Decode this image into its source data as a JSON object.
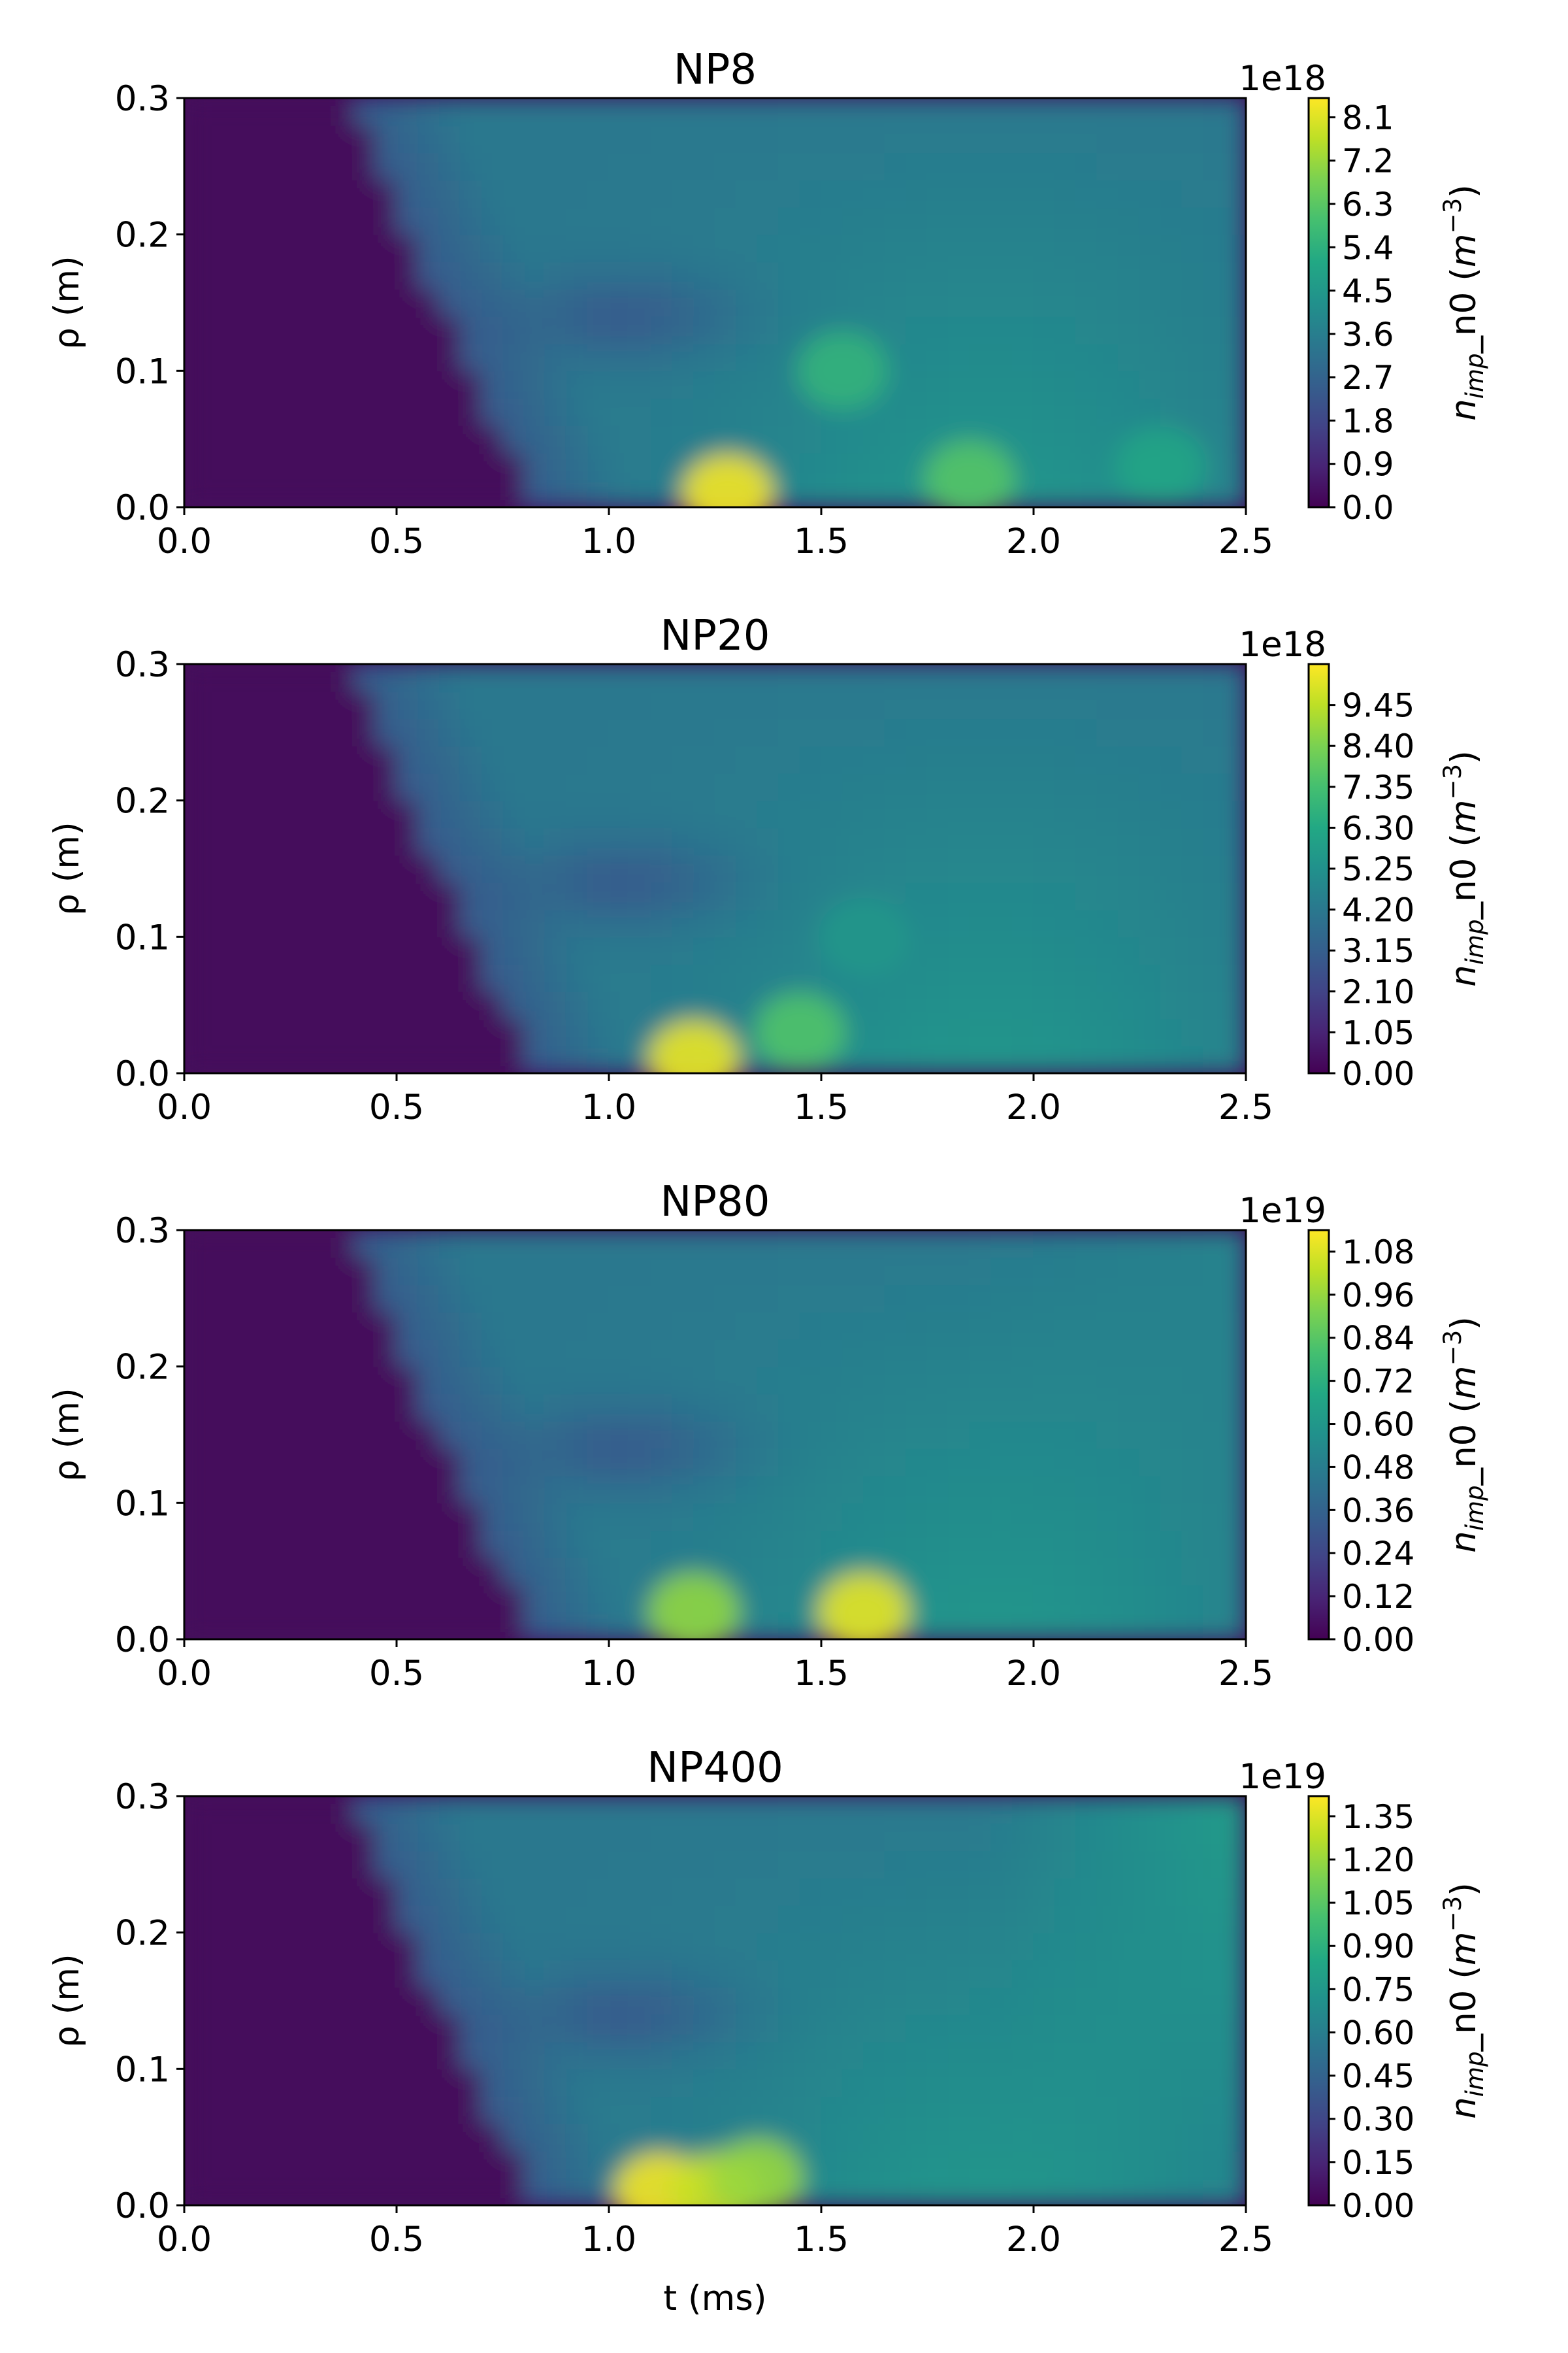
{
  "chart_data": [
    {
      "type": "heatmap",
      "title": "NP8",
      "xlabel": "",
      "ylabel": "ρ (m)",
      "xlim": [
        0.0,
        2.5
      ],
      "ylim": [
        0.0,
        0.3
      ],
      "x_ticks": [
        "0.0",
        "0.5",
        "1.0",
        "1.5",
        "2.0",
        "2.5"
      ],
      "y_ticks": [
        "0.0",
        "0.1",
        "0.2",
        "0.3"
      ],
      "colormap": "viridis",
      "colorbar": {
        "label": "n_imp_n0 (m^-3)",
        "label_main": "n",
        "label_sub": "imp",
        "label_mid": "_n0 (",
        "label_m": "m",
        "label_sup": "−3",
        "label_end": ")",
        "exponent": "1e18",
        "vmin": 0.0,
        "vmax": 8.5,
        "ticks": [
          "0.0",
          "0.9",
          "1.8",
          "2.7",
          "3.6",
          "4.5",
          "5.4",
          "6.3",
          "7.2",
          "8.1"
        ],
        "tick_values": [
          0.0,
          0.9,
          1.8,
          2.7,
          3.6,
          4.5,
          5.4,
          6.3,
          7.2,
          8.1
        ]
      },
      "features": [
        {
          "t": 1.28,
          "rho": 0.01,
          "level": 8.4
        },
        {
          "t": 1.55,
          "rho": 0.1,
          "level": 5.5
        },
        {
          "t": 1.85,
          "rho": 0.02,
          "level": 6.2
        },
        {
          "t": 2.3,
          "rho": 0.03,
          "level": 5.0
        }
      ]
    },
    {
      "type": "heatmap",
      "title": "NP20",
      "xlabel": "",
      "ylabel": "ρ (m)",
      "xlim": [
        0.0,
        2.5
      ],
      "ylim": [
        0.0,
        0.3
      ],
      "x_ticks": [
        "0.0",
        "0.5",
        "1.0",
        "1.5",
        "2.0",
        "2.5"
      ],
      "y_ticks": [
        "0.0",
        "0.1",
        "0.2",
        "0.3"
      ],
      "colormap": "viridis",
      "colorbar": {
        "label": "n_imp_n0 (m^-3)",
        "label_main": "n",
        "label_sub": "imp",
        "label_mid": "_n0 (",
        "label_m": "m",
        "label_sup": "−3",
        "label_end": ")",
        "exponent": "1e18",
        "vmin": 0.0,
        "vmax": 10.5,
        "ticks": [
          "0.00",
          "1.05",
          "2.10",
          "3.15",
          "4.20",
          "5.25",
          "6.30",
          "7.35",
          "8.40",
          "9.45"
        ],
        "tick_values": [
          0.0,
          1.05,
          2.1,
          3.15,
          4.2,
          5.25,
          6.3,
          7.35,
          8.4,
          9.45
        ]
      },
      "features": [
        {
          "t": 1.2,
          "rho": 0.01,
          "level": 10.2
        },
        {
          "t": 1.45,
          "rho": 0.03,
          "level": 7.6
        },
        {
          "t": 1.6,
          "rho": 0.1,
          "level": 5.5
        }
      ]
    },
    {
      "type": "heatmap",
      "title": "NP80",
      "xlabel": "",
      "ylabel": "ρ (m)",
      "xlim": [
        0.0,
        2.5
      ],
      "ylim": [
        0.0,
        0.3
      ],
      "x_ticks": [
        "0.0",
        "0.5",
        "1.0",
        "1.5",
        "2.0",
        "2.5"
      ],
      "y_ticks": [
        "0.0",
        "0.1",
        "0.2",
        "0.3"
      ],
      "colormap": "viridis",
      "colorbar": {
        "label": "n_imp_n0 (m^-3)",
        "label_main": "n",
        "label_sub": "imp",
        "label_mid": "_n0 (",
        "label_m": "m",
        "label_sup": "−3",
        "label_end": ")",
        "exponent": "1e19",
        "vmin": 0.0,
        "vmax": 1.14,
        "ticks": [
          "0.00",
          "0.12",
          "0.24",
          "0.36",
          "0.48",
          "0.60",
          "0.72",
          "0.84",
          "0.96",
          "1.08"
        ],
        "tick_values": [
          0.0,
          0.12,
          0.24,
          0.36,
          0.48,
          0.6,
          0.72,
          0.84,
          0.96,
          1.08
        ]
      },
      "features": [
        {
          "t": 1.6,
          "rho": 0.02,
          "level": 1.1
        },
        {
          "t": 1.2,
          "rho": 0.02,
          "level": 0.95
        }
      ]
    },
    {
      "type": "heatmap",
      "title": "NP400",
      "xlabel": "t (ms)",
      "ylabel": "ρ (m)",
      "xlim": [
        0.0,
        2.5
      ],
      "ylim": [
        0.0,
        0.3
      ],
      "x_ticks": [
        "0.0",
        "0.5",
        "1.0",
        "1.5",
        "2.0",
        "2.5"
      ],
      "y_ticks": [
        "0.0",
        "0.1",
        "0.2",
        "0.3"
      ],
      "colormap": "viridis",
      "colorbar": {
        "label": "n_imp_n0 (m^-3)",
        "label_main": "n",
        "label_sub": "imp",
        "label_mid": "_n0 (",
        "label_m": "m",
        "label_sup": "−3",
        "label_end": ")",
        "exponent": "1e19",
        "vmin": 0.0,
        "vmax": 1.42,
        "ticks": [
          "0.00",
          "0.15",
          "0.30",
          "0.45",
          "0.60",
          "0.75",
          "0.90",
          "1.05",
          "1.20",
          "1.35"
        ],
        "tick_values": [
          0.0,
          0.15,
          0.3,
          0.45,
          0.6,
          0.75,
          0.9,
          1.05,
          1.2,
          1.35
        ]
      },
      "features": [
        {
          "t": 1.12,
          "rho": 0.01,
          "level": 1.4
        },
        {
          "t": 1.25,
          "rho": 0.01,
          "level": 1.3
        },
        {
          "t": 1.35,
          "rho": 0.02,
          "level": 1.2
        }
      ]
    }
  ]
}
